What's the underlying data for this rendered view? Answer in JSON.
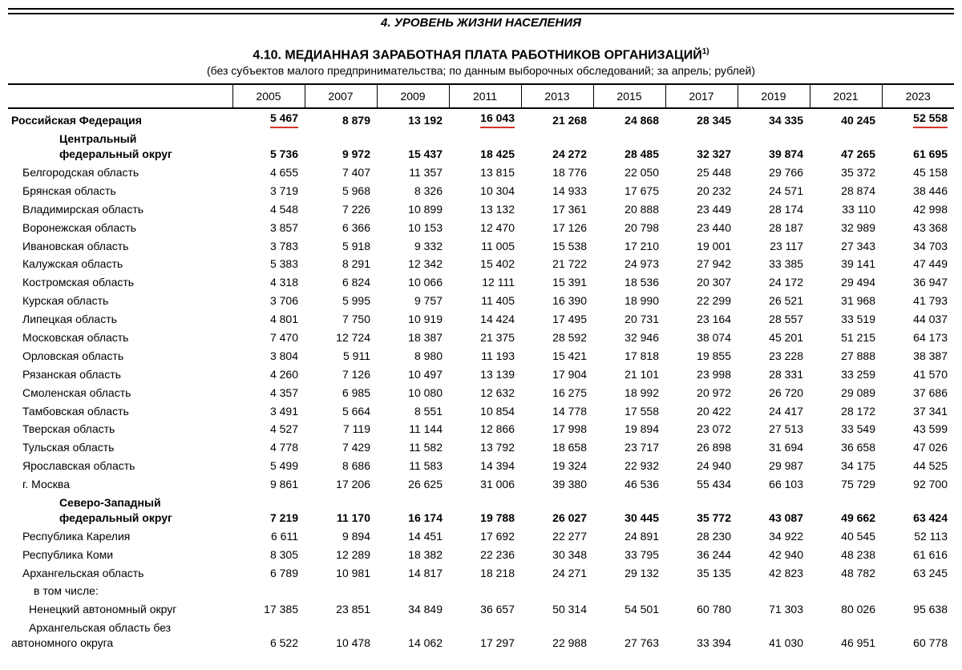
{
  "colors": {
    "text": "#000000",
    "background": "#ffffff",
    "rule": "#000000",
    "underline": "#d6332a"
  },
  "header": {
    "section": "4. УРОВЕНЬ ЖИЗНИ НАСЕЛЕНИЯ",
    "title": "4.10. МЕДИАННАЯ ЗАРАБОТНАЯ ПЛАТА РАБОТНИКОВ ОРГАНИЗАЦИЙ",
    "title_sup": "1)",
    "subtitle": "(без субъектов малого предпринимательства; по данным выборочных обследований; за апрель; рублей)"
  },
  "columns": [
    "2005",
    "2007",
    "2009",
    "2011",
    "2013",
    "2015",
    "2017",
    "2019",
    "2021",
    "2023"
  ],
  "rows": [
    {
      "type": "country",
      "indent": 0,
      "name": "Российская Федерация",
      "values": [
        "5 467",
        "8 879",
        "13 192",
        "16 043",
        "21 268",
        "24 868",
        "28 345",
        "34 335",
        "40 245",
        "52 558"
      ],
      "underline": [
        true,
        false,
        false,
        true,
        false,
        false,
        false,
        false,
        false,
        true
      ]
    },
    {
      "type": "district",
      "indent": 2,
      "name": "Центральный федеральный округ",
      "values": [
        "5 736",
        "9 972",
        "15 437",
        "18 425",
        "24 272",
        "28 485",
        "32 327",
        "39 874",
        "47 265",
        "61 695"
      ]
    },
    {
      "type": "region",
      "indent": 1,
      "name": "Белгородская область",
      "values": [
        "4 655",
        "7 407",
        "11 357",
        "13 815",
        "18 776",
        "22 050",
        "25 448",
        "29 766",
        "35 372",
        "45 158"
      ]
    },
    {
      "type": "region",
      "indent": 1,
      "name": "Брянская область",
      "values": [
        "3 719",
        "5 968",
        "8 326",
        "10 304",
        "14 933",
        "17 675",
        "20 232",
        "24 571",
        "28 874",
        "38 446"
      ]
    },
    {
      "type": "region",
      "indent": 1,
      "name": "Владимирская область",
      "values": [
        "4 548",
        "7 226",
        "10 899",
        "13 132",
        "17 361",
        "20 888",
        "23 449",
        "28 174",
        "33 110",
        "42 998"
      ]
    },
    {
      "type": "region",
      "indent": 1,
      "name": "Воронежская область",
      "values": [
        "3 857",
        "6 366",
        "10 153",
        "12 470",
        "17 126",
        "20 798",
        "23 440",
        "28 187",
        "32 989",
        "43 368"
      ]
    },
    {
      "type": "region",
      "indent": 1,
      "name": "Ивановская область",
      "values": [
        "3 783",
        "5 918",
        "9 332",
        "11 005",
        "15 538",
        "17 210",
        "19 001",
        "23 117",
        "27 343",
        "34 703"
      ]
    },
    {
      "type": "region",
      "indent": 1,
      "name": "Калужская область",
      "values": [
        "5 383",
        "8 291",
        "12 342",
        "15 402",
        "21 722",
        "24 973",
        "27 942",
        "33 385",
        "39 141",
        "47 449"
      ]
    },
    {
      "type": "region",
      "indent": 1,
      "name": "Костромская область",
      "values": [
        "4 318",
        "6 824",
        "10 066",
        "12 111",
        "15 391",
        "18 536",
        "20 307",
        "24 172",
        "29 494",
        "36 947"
      ]
    },
    {
      "type": "region",
      "indent": 1,
      "name": "Курская область",
      "values": [
        "3 706",
        "5 995",
        "9 757",
        "11 405",
        "16 390",
        "18 990",
        "22 299",
        "26 521",
        "31 968",
        "41 793"
      ]
    },
    {
      "type": "region",
      "indent": 1,
      "name": "Липецкая область",
      "values": [
        "4 801",
        "7 750",
        "10 919",
        "14 424",
        "17 495",
        "20 731",
        "23 164",
        "28 557",
        "33 519",
        "44 037"
      ]
    },
    {
      "type": "region",
      "indent": 1,
      "name": "Московская область",
      "values": [
        "7 470",
        "12 724",
        "18 387",
        "21 375",
        "28 592",
        "32 946",
        "38 074",
        "45 201",
        "51 215",
        "64 173"
      ]
    },
    {
      "type": "region",
      "indent": 1,
      "name": "Орловская область",
      "values": [
        "3 804",
        "5 911",
        "8 980",
        "11 193",
        "15 421",
        "17 818",
        "19 855",
        "23 228",
        "27 888",
        "38 387"
      ]
    },
    {
      "type": "region",
      "indent": 1,
      "name": "Рязанская область",
      "values": [
        "4 260",
        "7 126",
        "10 497",
        "13 139",
        "17 904",
        "21 101",
        "23 998",
        "28 331",
        "33 259",
        "41 570"
      ]
    },
    {
      "type": "region",
      "indent": 1,
      "name": "Смоленская область",
      "values": [
        "4 357",
        "6 985",
        "10 080",
        "12 632",
        "16 275",
        "18 992",
        "20 972",
        "26 720",
        "29 089",
        "37 686"
      ]
    },
    {
      "type": "region",
      "indent": 1,
      "name": "Тамбовская область",
      "values": [
        "3 491",
        "5 664",
        "8 551",
        "10 854",
        "14 778",
        "17 558",
        "20 422",
        "24 417",
        "28 172",
        "37 341"
      ]
    },
    {
      "type": "region",
      "indent": 1,
      "name": "Тверская область",
      "values": [
        "4 527",
        "7 119",
        "11 144",
        "12 866",
        "17 998",
        "19 894",
        "23 072",
        "27 513",
        "33 549",
        "43 599"
      ]
    },
    {
      "type": "region",
      "indent": 1,
      "name": "Тульская область",
      "values": [
        "4 778",
        "7 429",
        "11 582",
        "13 792",
        "18 658",
        "23 717",
        "26 898",
        "31 694",
        "36 658",
        "47 026"
      ]
    },
    {
      "type": "region",
      "indent": 1,
      "name": "Ярославская область",
      "values": [
        "5 499",
        "8 686",
        "11 583",
        "14 394",
        "19 324",
        "22 932",
        "24 940",
        "29 987",
        "34 175",
        "44 525"
      ]
    },
    {
      "type": "region",
      "indent": 1,
      "name": "г. Москва",
      "values": [
        "9 861",
        "17 206",
        "26 625",
        "31 006",
        "39 380",
        "46 536",
        "55 434",
        "66 103",
        "75 729",
        "92 700"
      ]
    },
    {
      "type": "district",
      "indent": 2,
      "name": "Северо-Западный федеральный округ",
      "values": [
        "7 219",
        "11 170",
        "16 174",
        "19 788",
        "26 027",
        "30 445",
        "35 772",
        "43 087",
        "49 662",
        "63 424"
      ]
    },
    {
      "type": "region",
      "indent": 1,
      "name": "Республика Карелия",
      "values": [
        "6 611",
        "9 894",
        "14 451",
        "17 692",
        "22 277",
        "24 891",
        "28 230",
        "34 922",
        "40 545",
        "52 113"
      ]
    },
    {
      "type": "region",
      "indent": 1,
      "name": "Республика Коми",
      "values": [
        "8 305",
        "12 289",
        "18 382",
        "22 236",
        "30 348",
        "33 795",
        "36 244",
        "42 940",
        "48 238",
        "61 616"
      ]
    },
    {
      "type": "region",
      "indent": 1,
      "name": "Архангельская область",
      "values": [
        "6 789",
        "10 981",
        "14 817",
        "18 218",
        "24 271",
        "29 132",
        "35 135",
        "42 823",
        "48 782",
        "63 245"
      ]
    },
    {
      "type": "note",
      "indent": 4,
      "name": "в том числе:",
      "values": [
        "",
        "",
        "",
        "",
        "",
        "",
        "",
        "",
        "",
        ""
      ]
    },
    {
      "type": "region",
      "indent": 3,
      "name": "Ненецкий автономный округ",
      "values": [
        "17 385",
        "23 851",
        "34 849",
        "36 657",
        "50 314",
        "54 501",
        "60 780",
        "71 303",
        "80 026",
        "95 638"
      ]
    },
    {
      "type": "region",
      "indent": 3,
      "name": "Архангельская область без автономного округа",
      "values": [
        "6 522",
        "10 478",
        "14 062",
        "17 297",
        "22 988",
        "27 763",
        "33 394",
        "41 030",
        "46 951",
        "60 778"
      ]
    }
  ]
}
